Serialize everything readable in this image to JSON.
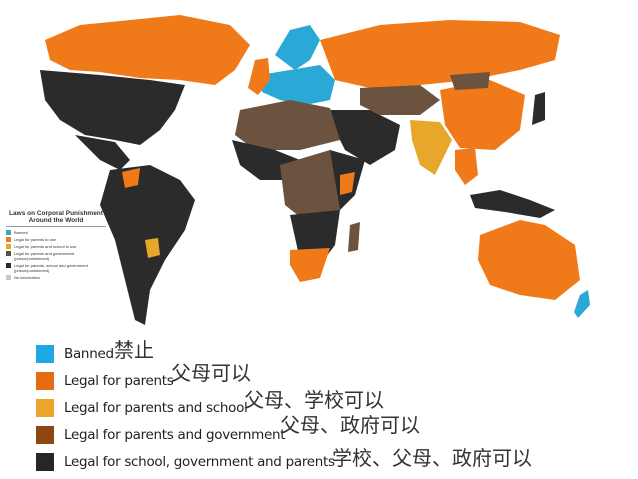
{
  "colors": {
    "banned": "#2aa8d6",
    "parents": "#f07a1a",
    "parents_school": "#e8a72a",
    "parents_government": "#6b5340",
    "all": "#2b2b2b",
    "no_info": "#c8c8c8"
  },
  "mini_legend": {
    "title": "Laws on Corporal Punishment Around the World",
    "items": [
      {
        "label": "Banned",
        "color": "#3aa6c0"
      },
      {
        "label": "Legal for parents to use",
        "color": "#f07a1a"
      },
      {
        "label": "Legal for parents and school to use",
        "color": "#e8a72a"
      },
      {
        "label": "Legal for parents and government (prison/punishment)",
        "color": "#5a5048"
      },
      {
        "label": "Legal for parents, school and government (prison/punishment)",
        "color": "#2b2b2b"
      },
      {
        "label": "No information",
        "color": "#c8c8c8"
      }
    ]
  },
  "legend": [
    {
      "label": "Banned",
      "cn": "禁止",
      "color": "#1ea9e6"
    },
    {
      "label": "Legal for parents",
      "cn": "父母可以",
      "color": "#e46c12"
    },
    {
      "label": "Legal for parents and school",
      "cn": "父母、学校可以",
      "color": "#eaa52a"
    },
    {
      "label": "Legal for parents and government",
      "cn": "父母、政府可以",
      "color": "#8e4512"
    },
    {
      "label": "Legal for school, government and parents",
      "cn": "学校、父母、政府可以",
      "color": "#262626"
    }
  ]
}
